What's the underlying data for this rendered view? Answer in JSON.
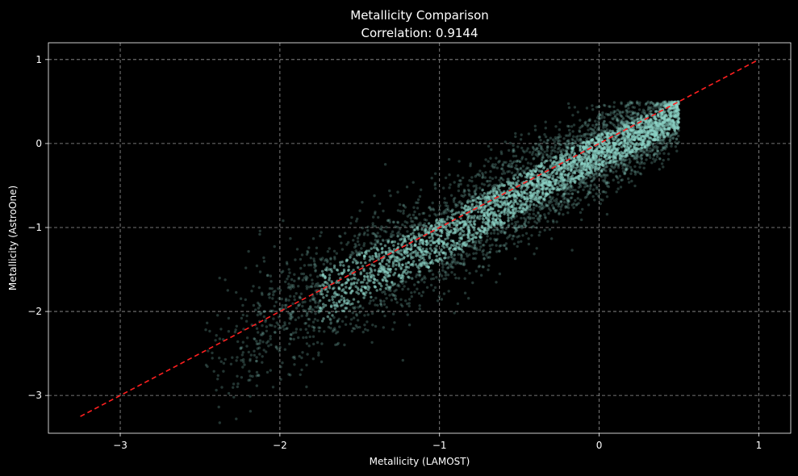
{
  "chart_data": {
    "type": "scatter",
    "title": "Metallicity Comparison",
    "subtitle": "Correlation: 0.9144",
    "xlabel": "Metallicity (LAMOST)",
    "ylabel": "Metallicity (AstroOne)",
    "xlim": [
      -3.45,
      1.2
    ],
    "ylim": [
      -3.45,
      1.2
    ],
    "x_ticks": [
      -3,
      -2,
      -1,
      0,
      1
    ],
    "y_ticks": [
      -3,
      -2,
      -1,
      0,
      1
    ],
    "x_tick_labels": [
      "−3",
      "−2",
      "−1",
      "0",
      "1"
    ],
    "y_tick_labels": [
      "−3",
      "−2",
      "−1",
      "0",
      "1"
    ],
    "grid": true,
    "legend": "none",
    "colors": {
      "background": "#000000",
      "points": "#8dd3c7",
      "reference_line": "#ff2020",
      "grid": "#bfbfbf",
      "text": "#ffffff"
    },
    "reference_line": {
      "style": "dashed",
      "x": [
        -3.25,
        1.0
      ],
      "y": [
        -3.25,
        1.0
      ]
    },
    "correlation": 0.9144,
    "series": [
      {
        "x_range": [
          -2.5,
          0.5
        ],
        "trend_y_at_x": [
          [
            -2.2,
            -2.35
          ],
          [
            -2.0,
            -2.05
          ],
          [
            -1.5,
            -1.6
          ],
          [
            -1.0,
            -1.15
          ],
          [
            -0.5,
            -0.6
          ],
          [
            0.0,
            -0.1
          ],
          [
            0.3,
            0.15
          ],
          [
            0.5,
            0.35
          ]
        ],
        "y_spread": 0.3,
        "max_y": 0.5
      }
    ]
  }
}
